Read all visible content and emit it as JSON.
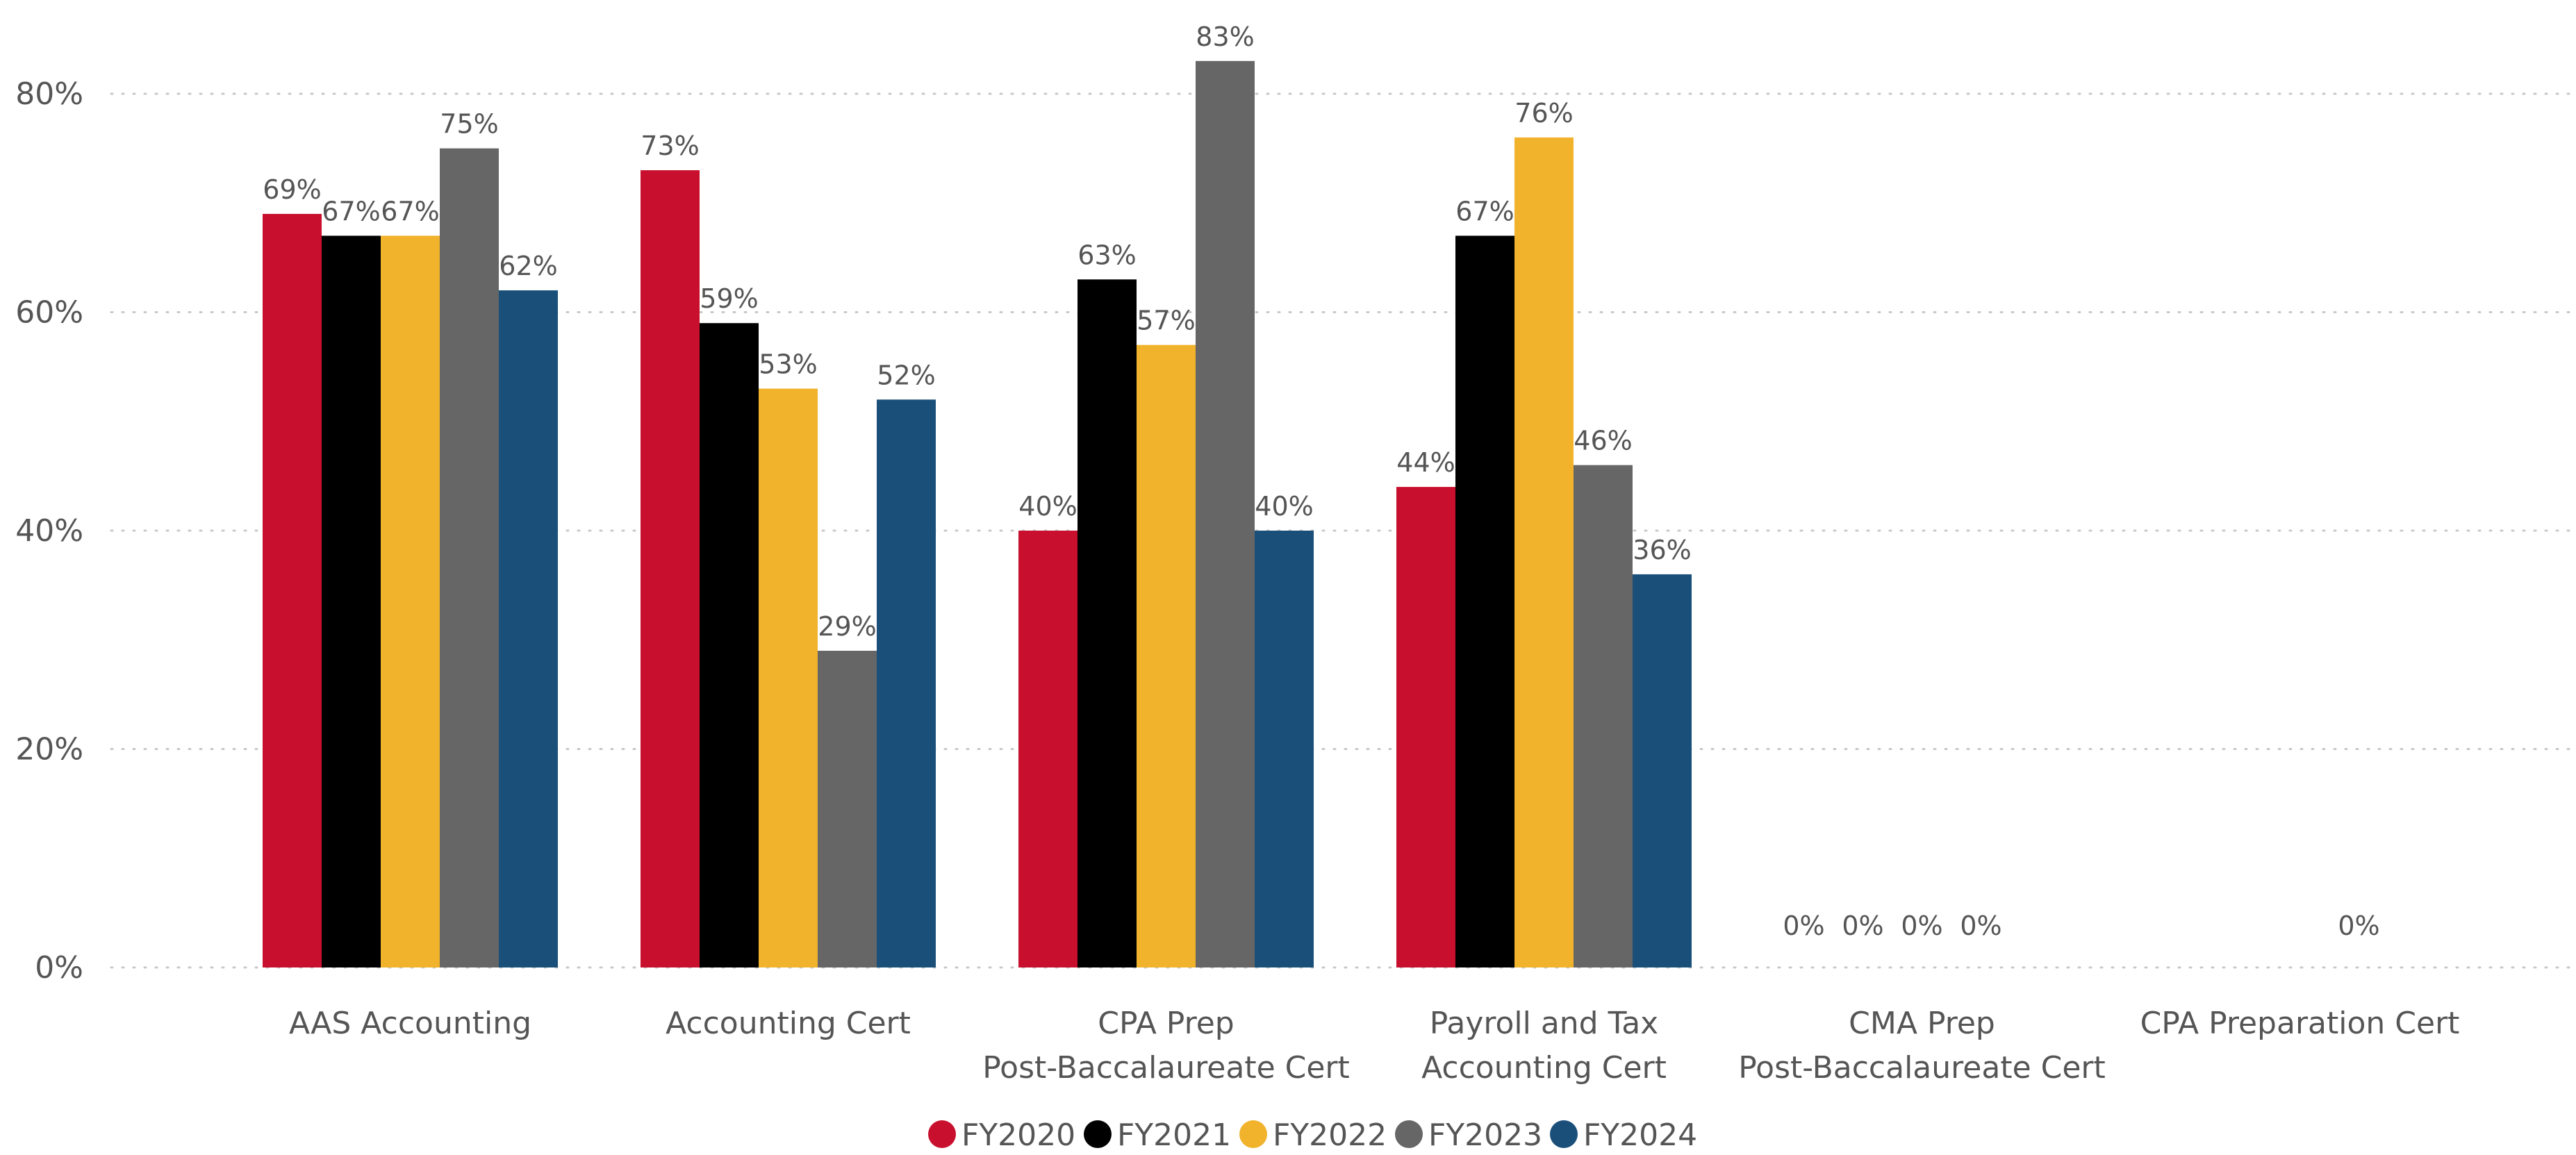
{
  "chart_data": {
    "type": "bar",
    "categories": [
      [
        "AAS Accounting"
      ],
      [
        "Accounting Cert"
      ],
      [
        "CPA Prep",
        "Post-Baccalaureate Cert"
      ],
      [
        "Payroll and Tax",
        "Accounting Cert"
      ],
      [
        "CMA Prep",
        "Post-Baccalaureate Cert"
      ],
      [
        "CPA Preparation Cert"
      ]
    ],
    "series": [
      {
        "name": "FY2020",
        "color": "#C8102E",
        "values": [
          69,
          73,
          40,
          44,
          0,
          null
        ]
      },
      {
        "name": "FY2021",
        "color": "#000000",
        "values": [
          67,
          59,
          63,
          67,
          0,
          null
        ]
      },
      {
        "name": "FY2022",
        "color": "#F1B22C",
        "values": [
          67,
          53,
          57,
          76,
          0,
          null
        ]
      },
      {
        "name": "FY2023",
        "color": "#666666",
        "values": [
          75,
          29,
          83,
          46,
          0,
          0
        ]
      },
      {
        "name": "FY2024",
        "color": "#1A4F7A",
        "values": [
          62,
          52,
          40,
          36,
          null,
          null
        ]
      }
    ],
    "data_labels": [
      [
        "69%",
        "67%",
        "67%",
        "75%",
        "62%"
      ],
      [
        "73%",
        "59%",
        "53%",
        "29%",
        "52%"
      ],
      [
        "40%",
        "63%",
        "57%",
        "83%",
        "40%"
      ],
      [
        "44%",
        "67%",
        "76%",
        "46%",
        "36%"
      ],
      [
        "0%",
        "0%",
        "0%",
        "0%",
        ""
      ],
      [
        "",
        "",
        "",
        "0%",
        ""
      ]
    ],
    "y_ticks": [
      "0%",
      "20%",
      "40%",
      "60%",
      "80%"
    ],
    "ylim": [
      0,
      80
    ],
    "grid": true,
    "legend_position": "bottom-center",
    "title": "",
    "xlabel": "",
    "ylabel": ""
  }
}
